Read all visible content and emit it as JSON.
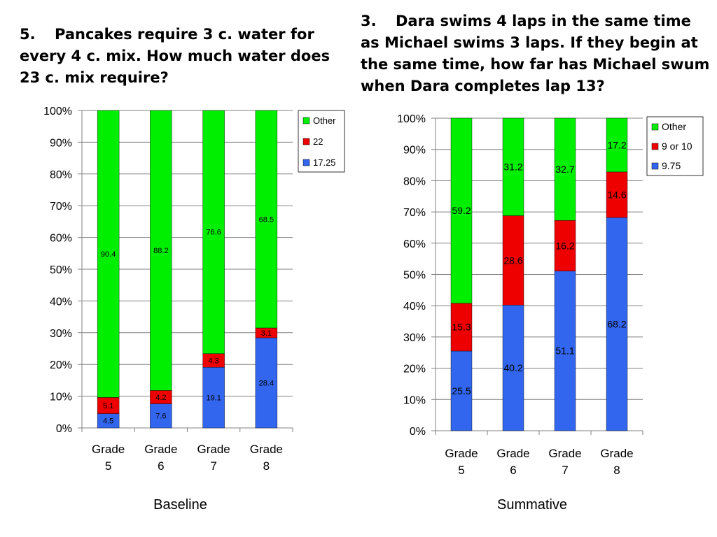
{
  "questions": {
    "q5": {
      "num": "5.",
      "text": "Pancakes require 3 c. water for every 4 c. mix.  How much water does 23 c. mix require?"
    },
    "q3": {
      "num": "3.",
      "text": "Dara swims 4 laps in the same time as Michael swims 3 laps.  If they begin at the same time, how far has Michael swum when Dara completes lap 13?"
    }
  },
  "colors": {
    "other": "#00ee00",
    "mid": "#ee0000",
    "low": "#3366ee",
    "grid": "#808080"
  },
  "chart_data": [
    {
      "type": "bar",
      "stacked": true,
      "title": "Baseline",
      "categories": [
        [
          "Grade",
          "5"
        ],
        [
          "Grade",
          "6"
        ],
        [
          "Grade",
          "7"
        ],
        [
          "Grade",
          "8"
        ]
      ],
      "series": [
        {
          "name": "17.25",
          "values": [
            4.5,
            7.6,
            19.1,
            28.4
          ]
        },
        {
          "name": "22",
          "values": [
            5.1,
            4.2,
            4.3,
            3.1
          ]
        },
        {
          "name": "Other",
          "values": [
            90.4,
            88.2,
            76.6,
            68.5
          ]
        }
      ],
      "yticks": [
        "0%",
        "10%",
        "20%",
        "30%",
        "40%",
        "50%",
        "60%",
        "70%",
        "80%",
        "90%",
        "100%"
      ],
      "ylim": [
        0,
        100
      ],
      "legend": [
        "Other",
        "22",
        "17.25"
      ],
      "legend_position": "top-right"
    },
    {
      "type": "bar",
      "stacked": true,
      "title": "Summative",
      "categories": [
        [
          "Grade",
          "5"
        ],
        [
          "Grade",
          "6"
        ],
        [
          "Grade",
          "7"
        ],
        [
          "Grade",
          "8"
        ]
      ],
      "series": [
        {
          "name": "9.75",
          "values": [
            25.5,
            40.2,
            51.1,
            68.2
          ]
        },
        {
          "name": "9 or 10",
          "values": [
            15.3,
            28.6,
            16.2,
            14.6
          ]
        },
        {
          "name": "Other",
          "values": [
            59.2,
            31.2,
            32.7,
            17.2
          ]
        }
      ],
      "yticks": [
        "0%",
        "10%",
        "20%",
        "30%",
        "40%",
        "50%",
        "60%",
        "70%",
        "80%",
        "90%",
        "100%"
      ],
      "ylim": [
        0,
        100
      ],
      "legend": [
        "Other",
        "9 or 10",
        "9.75"
      ],
      "legend_position": "top-right"
    }
  ]
}
